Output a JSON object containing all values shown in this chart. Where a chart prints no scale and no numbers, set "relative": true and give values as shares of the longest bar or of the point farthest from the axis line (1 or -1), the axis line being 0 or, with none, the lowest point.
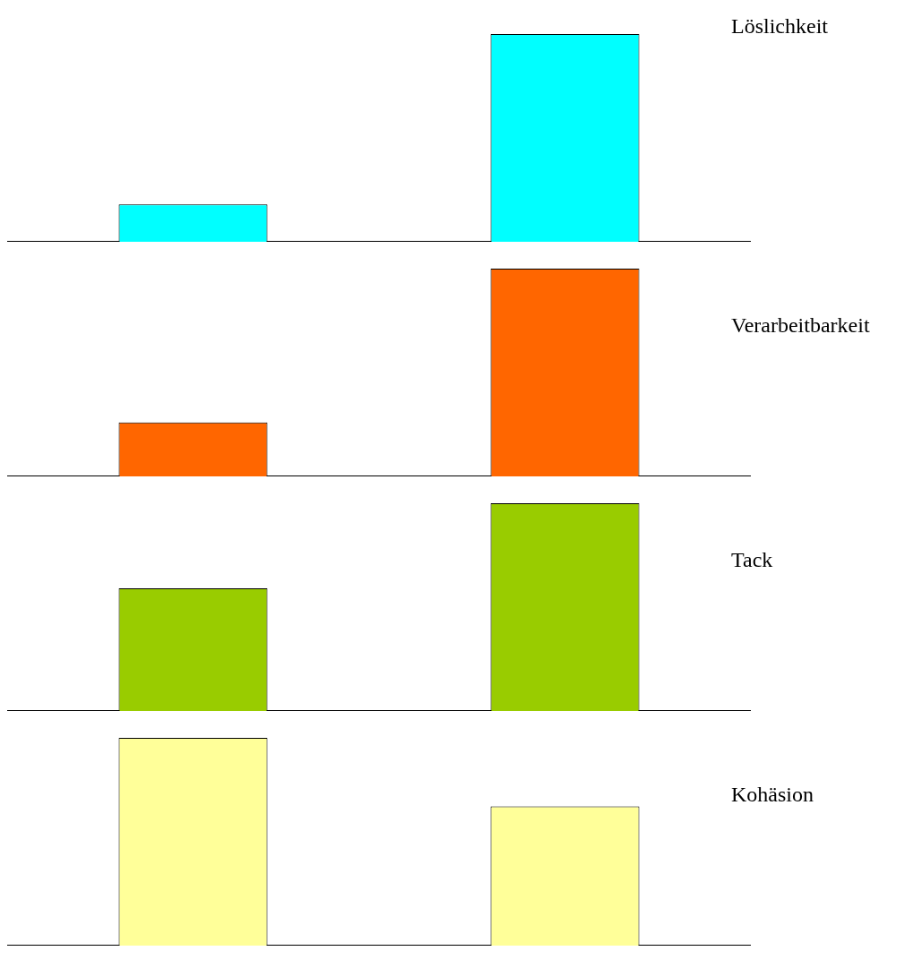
{
  "chart_data": [
    {
      "type": "bar",
      "title": "Löslichkeit",
      "categories": [
        null,
        null
      ],
      "values": [
        0.18,
        1
      ],
      "colors": [
        "#00ffff",
        "#00ffff"
      ],
      "relative": true
    },
    {
      "type": "bar",
      "title": "Verarbeitbarkeit",
      "categories": [
        null,
        null
      ],
      "values": [
        0.26,
        1
      ],
      "colors": [
        "#ff6600",
        "#ff6600"
      ],
      "relative": true
    },
    {
      "type": "bar",
      "title": "Tack",
      "categories": [
        null,
        null
      ],
      "values": [
        0.59,
        1
      ],
      "colors": [
        "#99cc00",
        "#99cc00"
      ],
      "relative": true
    },
    {
      "type": "bar",
      "title": "Kohäsion",
      "categories": [
        null,
        null
      ],
      "values": [
        1,
        0.67
      ],
      "colors": [
        "#ffff99",
        "#ffff99"
      ],
      "relative": true
    }
  ]
}
